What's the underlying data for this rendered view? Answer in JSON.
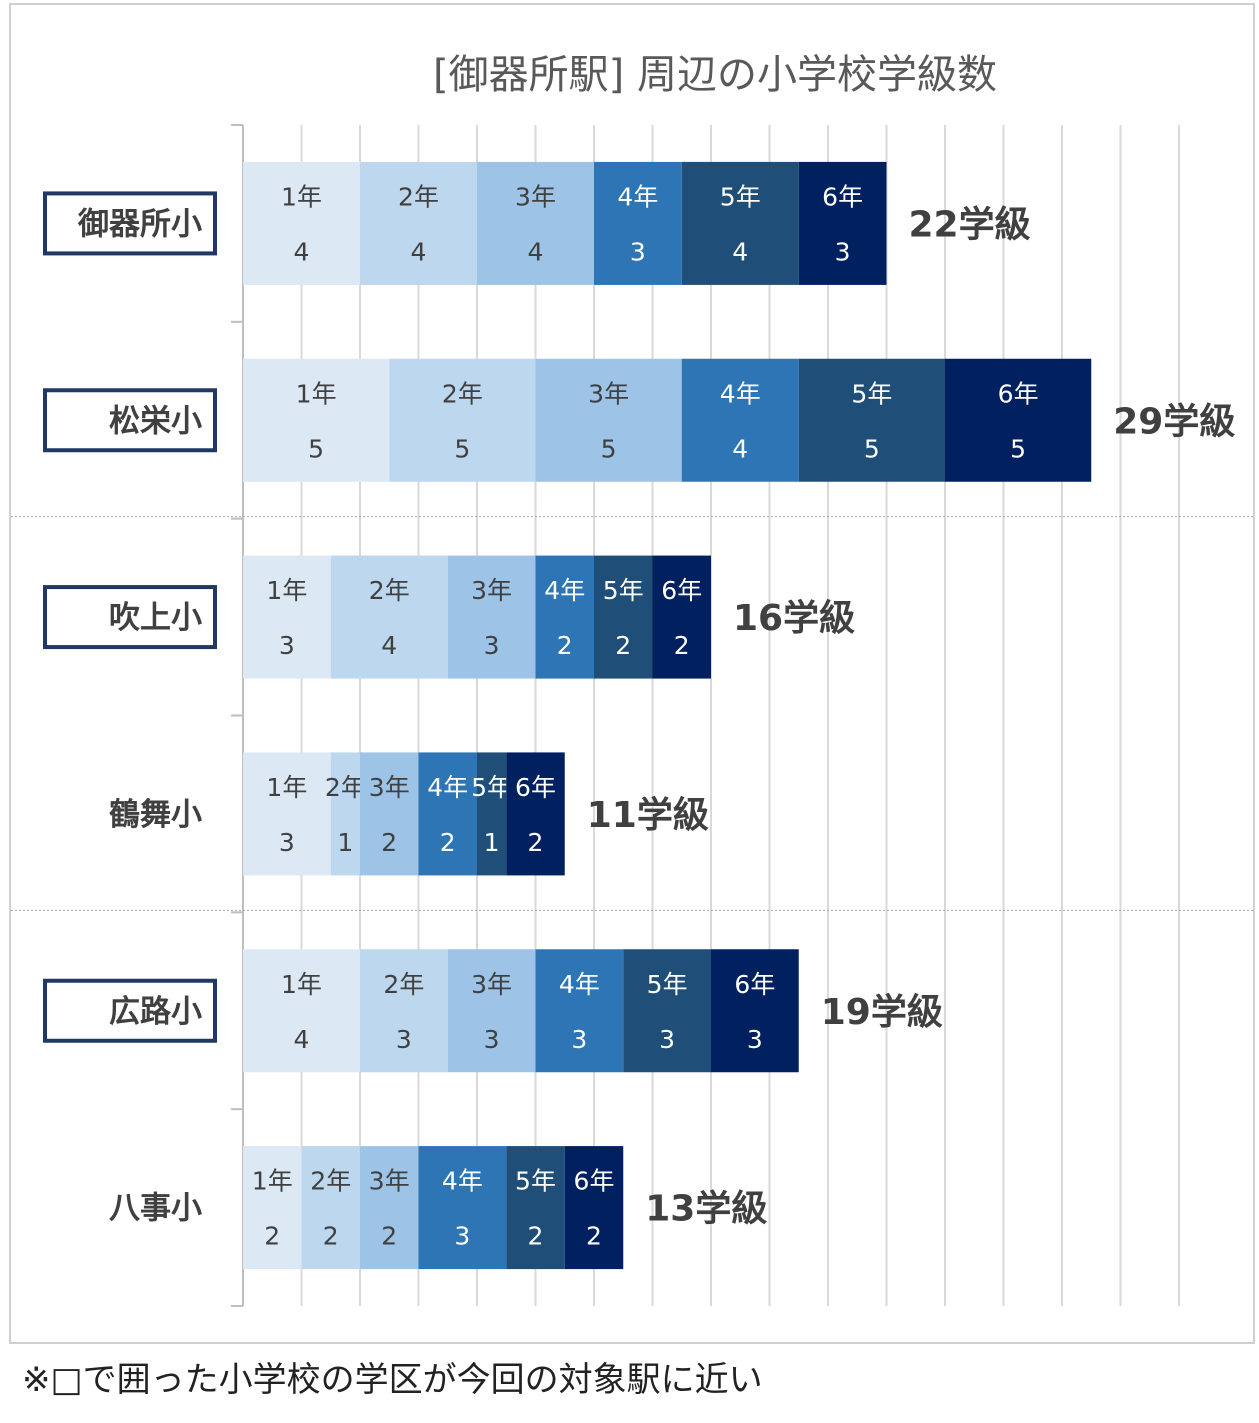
{
  "chart_data": {
    "type": "bar",
    "orientation": "horizontal",
    "stacked": true,
    "title": "[御器所駅] 周辺の小学校学級数",
    "categories": [
      "御器所小",
      "松栄小",
      "吹上小",
      "鶴舞小",
      "広路小",
      "八事小"
    ],
    "boxed_categories": [
      "御器所小",
      "松栄小",
      "吹上小",
      "広路小"
    ],
    "series": [
      {
        "name": "1年",
        "values": [
          4,
          5,
          3,
          3,
          4,
          2
        ],
        "color": "#dde8f5",
        "text_color": "#404040"
      },
      {
        "name": "2年",
        "values": [
          4,
          5,
          4,
          1,
          3,
          2
        ],
        "color": "#bdd7ee",
        "text_color": "#404040"
      },
      {
        "name": "3年",
        "values": [
          4,
          5,
          3,
          2,
          3,
          2
        ],
        "color": "#9dc3e6",
        "text_color": "#404040"
      },
      {
        "name": "4年",
        "values": [
          3,
          4,
          2,
          2,
          3,
          3
        ],
        "color": "#2e75b6",
        "text_color": "#ffffff"
      },
      {
        "name": "5年",
        "values": [
          4,
          5,
          2,
          1,
          3,
          2
        ],
        "color": "#1f4e79",
        "text_color": "#ffffff"
      },
      {
        "name": "6年",
        "values": [
          3,
          5,
          2,
          2,
          3,
          2
        ],
        "color": "#002060",
        "text_color": "#ffffff"
      }
    ],
    "totals": [
      "22学級",
      "29学級",
      "16学級",
      "11学級",
      "19学級",
      "13学級"
    ],
    "xlim": [
      0,
      32
    ],
    "grid": true,
    "legend": "none"
  },
  "footnote": "※□で囲った小学校の学区が今回の対象駅に近い"
}
